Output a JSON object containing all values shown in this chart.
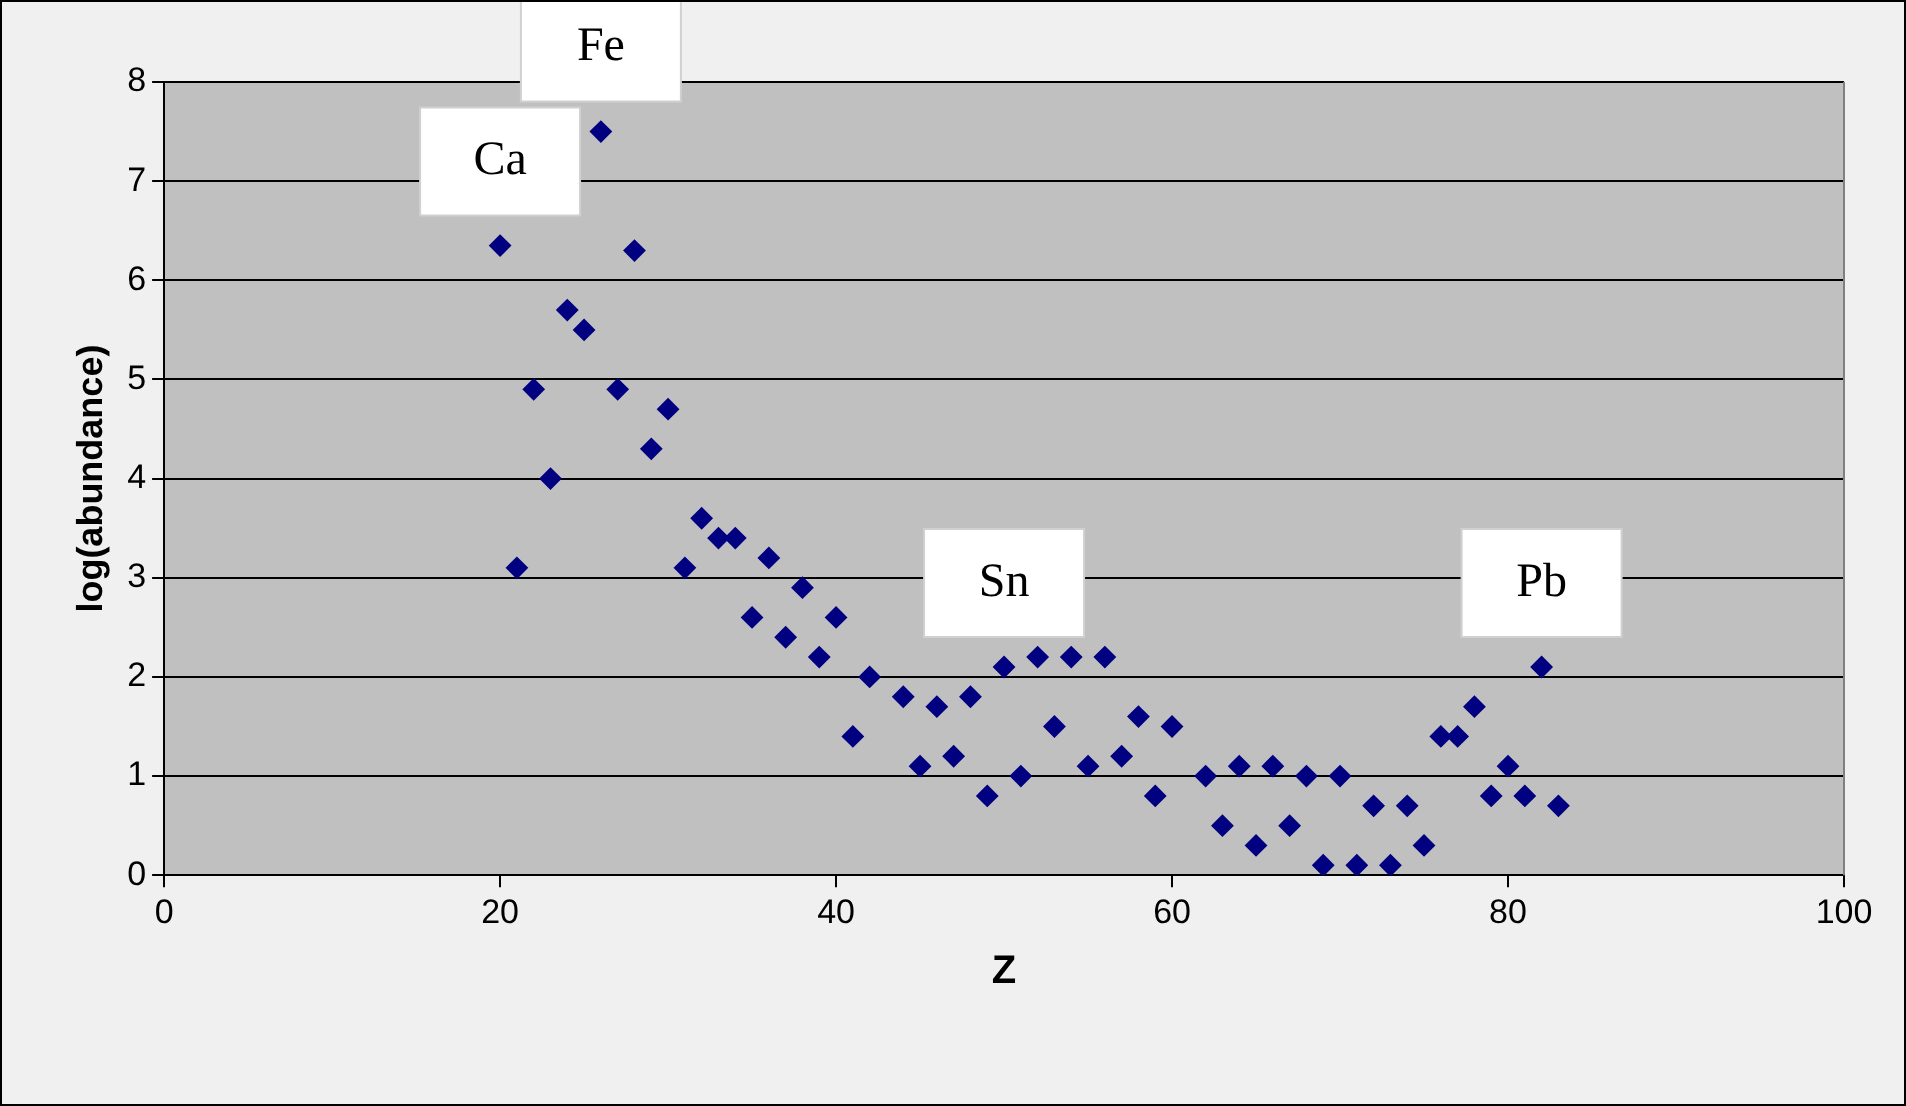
{
  "chart_data": {
    "type": "scatter",
    "xlabel": "Z",
    "ylabel": "log(abundance)",
    "xlim": [
      0,
      100
    ],
    "xticks": [
      0,
      20,
      40,
      60,
      80,
      100
    ],
    "ylim": [
      0,
      8
    ],
    "yticks": [
      0,
      1,
      2,
      3,
      4,
      5,
      6,
      7,
      8
    ],
    "grid": "y",
    "legend": false,
    "marker": "diamond",
    "series": [
      {
        "color": "#000080",
        "x": [
          20,
          21,
          22,
          23,
          24,
          25,
          26,
          27,
          28,
          29,
          30,
          31,
          32,
          33,
          34,
          35,
          36,
          37,
          38,
          39,
          40,
          41,
          42,
          44,
          45,
          46,
          47,
          48,
          49,
          50,
          51,
          52,
          53,
          54,
          55,
          56,
          57,
          58,
          59,
          60,
          62,
          63,
          64,
          65,
          66,
          67,
          68,
          69,
          70,
          71,
          72,
          73,
          74,
          75,
          76,
          77,
          78,
          79,
          80,
          81,
          82,
          83
        ],
        "values": [
          6.35,
          3.1,
          4.9,
          4.0,
          5.7,
          5.5,
          7.5,
          4.9,
          6.3,
          4.3,
          4.7,
          3.1,
          3.6,
          3.4,
          3.4,
          2.6,
          3.2,
          2.4,
          2.9,
          2.2,
          2.6,
          1.4,
          2.0,
          1.8,
          1.1,
          1.7,
          1.2,
          1.8,
          0.8,
          2.1,
          1.0,
          2.2,
          1.5,
          2.2,
          1.1,
          2.2,
          1.2,
          1.6,
          0.8,
          1.5,
          1.0,
          0.5,
          1.1,
          0.3,
          1.1,
          0.5,
          1.0,
          0.1,
          1.0,
          0.1,
          0.7,
          0.1,
          0.7,
          0.3,
          1.4,
          1.4,
          1.7,
          0.8,
          1.1,
          0.8,
          2.1,
          0.7
        ]
      }
    ],
    "annotations": [
      {
        "text": "Ca",
        "x": 20,
        "y": 6.35
      },
      {
        "text": "Fe",
        "x": 26,
        "y": 7.5
      },
      {
        "text": "Sn",
        "x": 50,
        "y": 2.1
      },
      {
        "text": "Pb",
        "x": 82,
        "y": 2.1
      }
    ]
  }
}
